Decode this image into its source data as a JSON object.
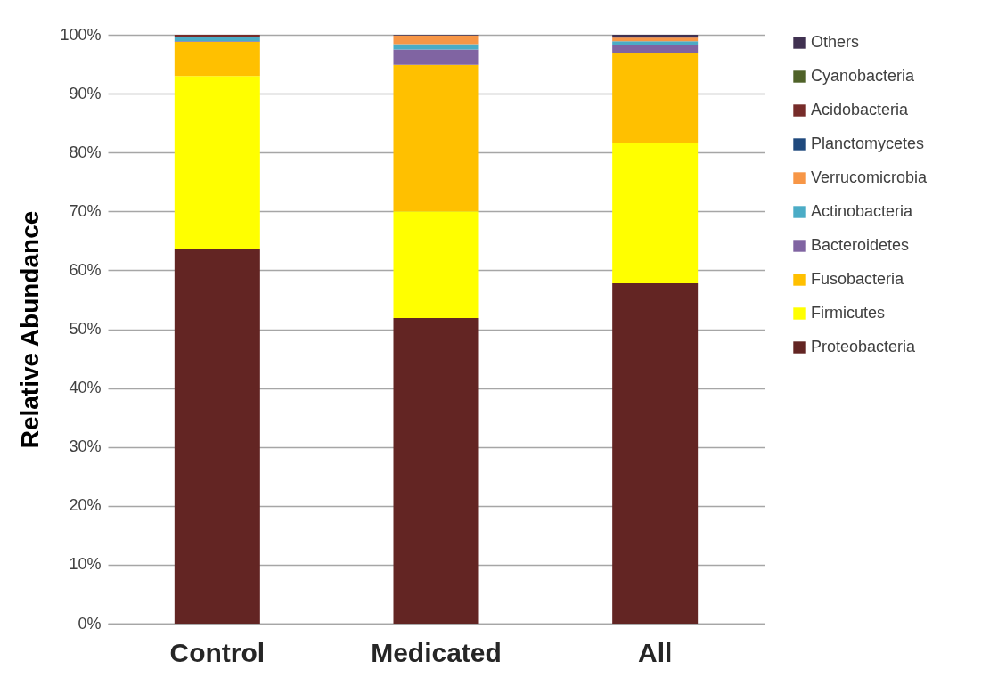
{
  "chart_data": {
    "type": "bar",
    "stacked": true,
    "ylabel": "Relative Abundance",
    "categories": [
      "Control",
      "Medicated",
      "All"
    ],
    "series": [
      {
        "name": "Proteobacteria",
        "color": "#632523",
        "values": [
          63.6,
          51.9,
          57.8
        ]
      },
      {
        "name": "Firmicutes",
        "color": "#ffff00",
        "values": [
          29.4,
          18.1,
          23.9
        ]
      },
      {
        "name": "Fusobacteria",
        "color": "#ffc000",
        "values": [
          5.8,
          24.9,
          15.2
        ]
      },
      {
        "name": "Bacteroidetes",
        "color": "#8064a2",
        "values": [
          0.1,
          2.6,
          1.3
        ]
      },
      {
        "name": "Actinobacteria",
        "color": "#4bacc6",
        "values": [
          0.8,
          0.9,
          0.7
        ]
      },
      {
        "name": "Verrucomicrobia",
        "color": "#f79646",
        "values": [
          0,
          1.5,
          0.6
        ]
      },
      {
        "name": "Planctomycetes",
        "color": "#1f497d",
        "values": [
          0,
          0,
          0
        ]
      },
      {
        "name": "Acidobacteria",
        "color": "#772c2a",
        "values": [
          0.3,
          0,
          0.2
        ]
      },
      {
        "name": "Cyanobacteria",
        "color": "#4f6228",
        "values": [
          0,
          0,
          0
        ]
      },
      {
        "name": "Others",
        "color": "#403151",
        "values": [
          0,
          0.1,
          0.3
        ]
      }
    ],
    "ylim": [
      0,
      100
    ],
    "yticks": [
      {
        "value": 0,
        "label": "0%"
      },
      {
        "value": 10,
        "label": "10%"
      },
      {
        "value": 20,
        "label": "20%"
      },
      {
        "value": 30,
        "label": "30%"
      },
      {
        "value": 40,
        "label": "40%"
      },
      {
        "value": 50,
        "label": "50%"
      },
      {
        "value": 60,
        "label": "60%"
      },
      {
        "value": 70,
        "label": "70%"
      },
      {
        "value": 80,
        "label": "80%"
      },
      {
        "value": 90,
        "label": "90%"
      },
      {
        "value": 100,
        "label": "100%"
      }
    ],
    "grid": "y",
    "legend": "right"
  }
}
